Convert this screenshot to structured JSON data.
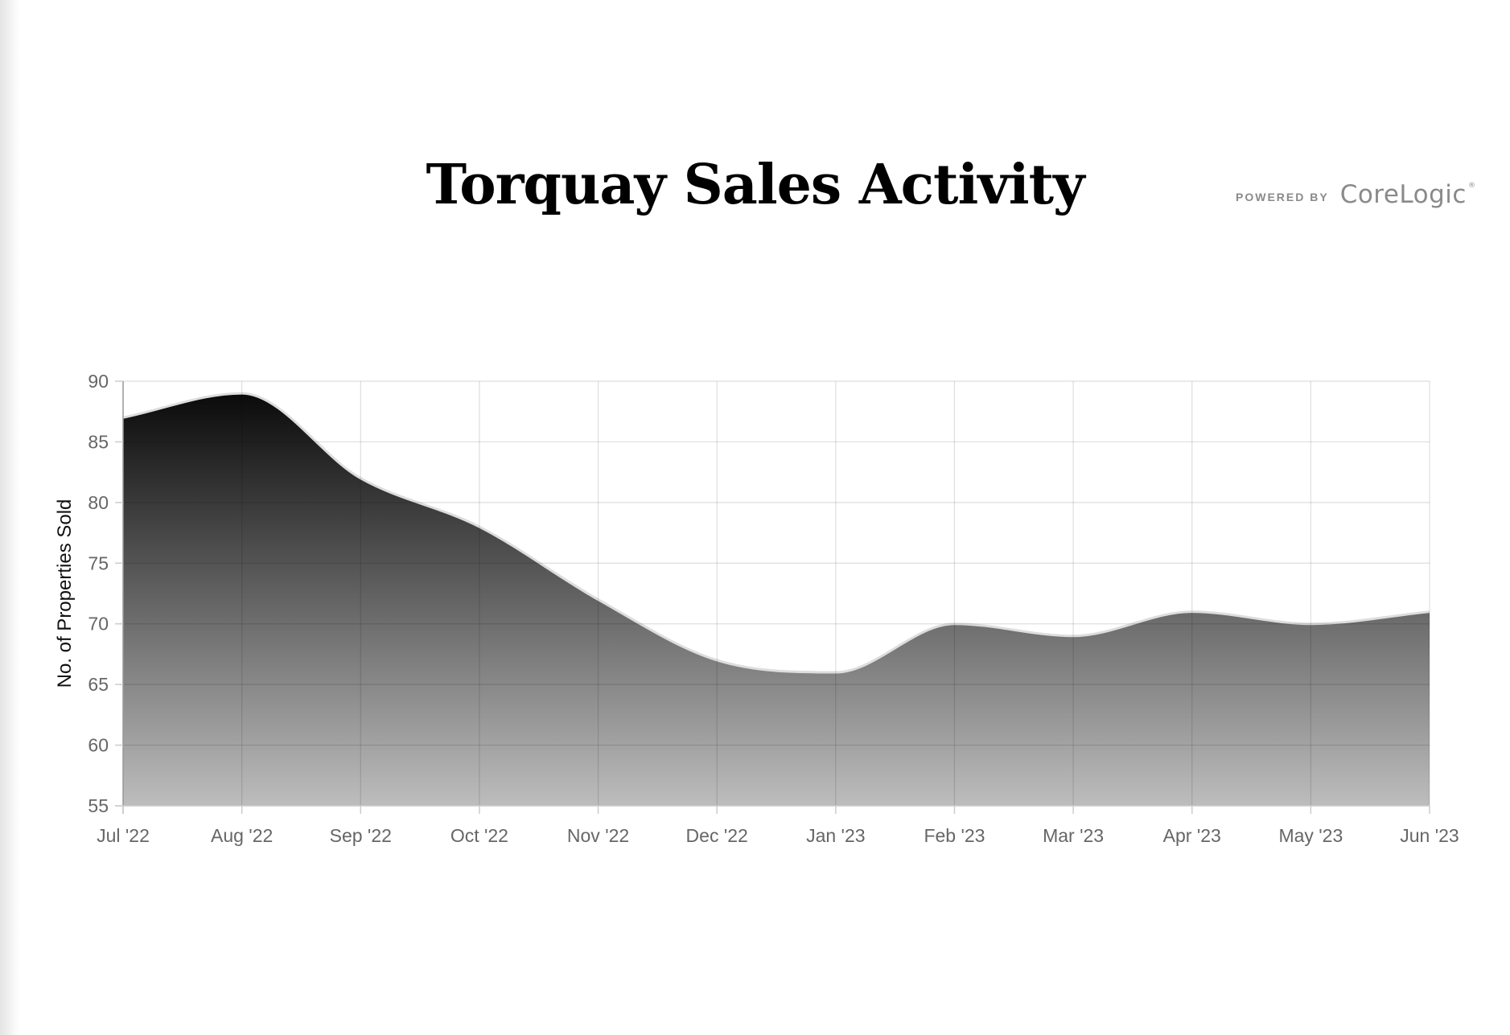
{
  "chart_data": {
    "type": "area",
    "title": "Torquay Sales Activity",
    "xlabel": "",
    "ylabel": "No. of Properties Sold",
    "categories": [
      "Jul '22",
      "Aug '22",
      "Sep '22",
      "Oct '22",
      "Nov '22",
      "Dec '22",
      "Jan '23",
      "Feb '23",
      "Mar '23",
      "Apr '23",
      "May '23",
      "Jun '23"
    ],
    "series": [
      {
        "values": [
          87,
          89,
          82,
          78,
          72,
          67,
          66,
          70,
          69,
          71,
          70,
          71
        ]
      }
    ],
    "ylim": [
      55,
      90
    ],
    "yticks": [
      55,
      60,
      65,
      70,
      75,
      80,
      85,
      90
    ],
    "grid": true,
    "fill_gradient": [
      "#0a0a0a",
      "#bdbdbd"
    ],
    "line_color": "#dddddd"
  },
  "branding": {
    "powered_by": "POWERED BY",
    "name": "CoreLogic",
    "mark": "®"
  }
}
